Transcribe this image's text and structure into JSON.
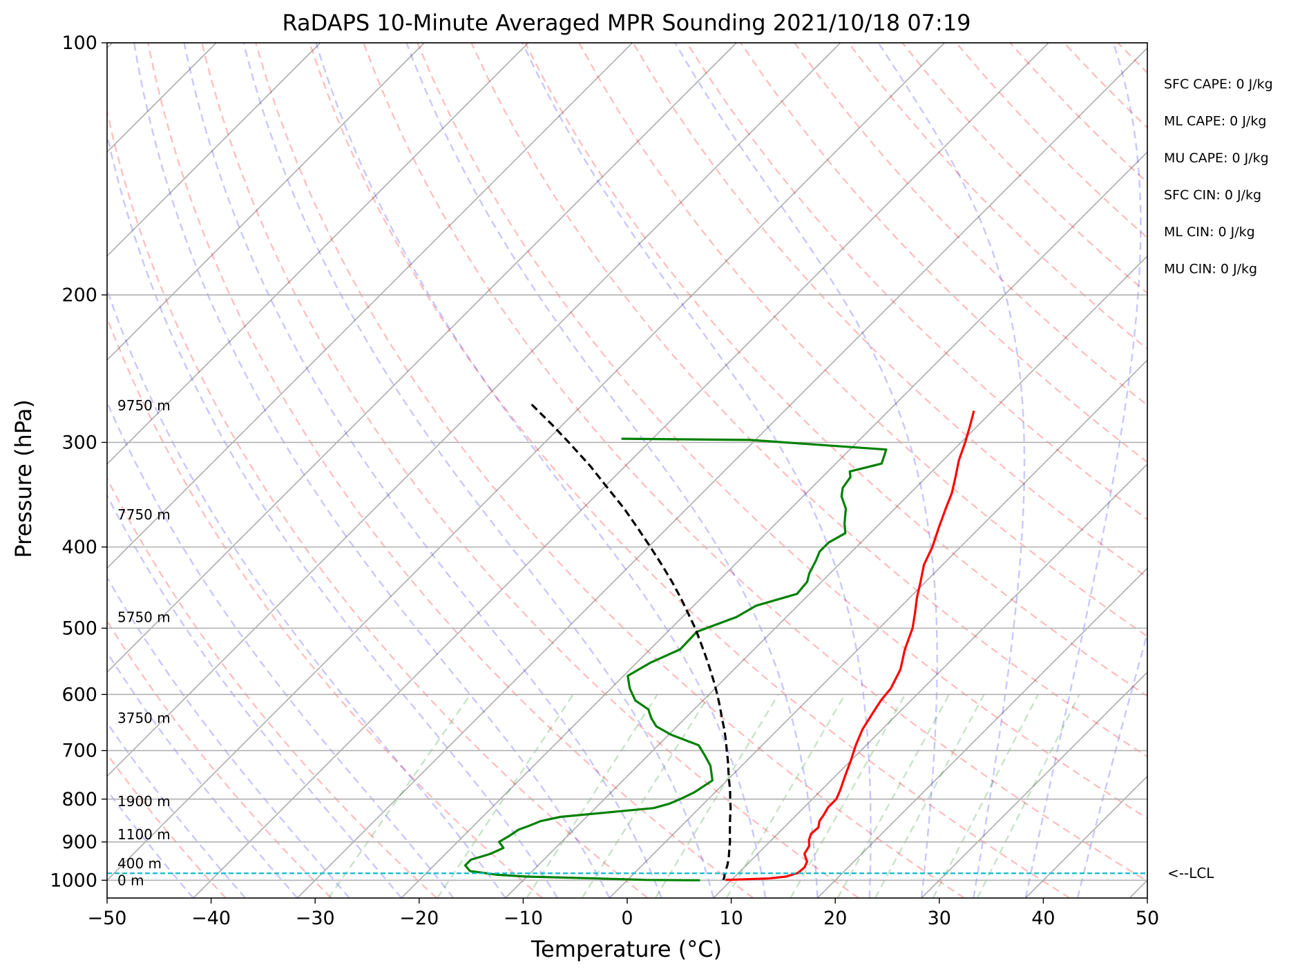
{
  "chart_data": {
    "type": "line",
    "title": "RaDAPS 10-Minute Averaged MPR Sounding 2021/10/18 07:19",
    "xlabel": "Temperature (°C)",
    "ylabel": "Pressure (hPa)",
    "xlim": [
      -50,
      50
    ],
    "ylim": [
      1050,
      100
    ],
    "y_scale": "log",
    "skew_t": true,
    "grid": true,
    "x_ticks": [
      {
        "value": -50,
        "label": "−50"
      },
      {
        "value": -40,
        "label": "−40"
      },
      {
        "value": -30,
        "label": "−30"
      },
      {
        "value": -20,
        "label": "−20"
      },
      {
        "value": -10,
        "label": "−10"
      },
      {
        "value": 0,
        "label": "0"
      },
      {
        "value": 10,
        "label": "10"
      },
      {
        "value": 20,
        "label": "20"
      },
      {
        "value": 30,
        "label": "30"
      },
      {
        "value": 40,
        "label": "40"
      },
      {
        "value": 50,
        "label": "50"
      }
    ],
    "y_ticks": [
      {
        "value": 100,
        "label": "100"
      },
      {
        "value": 200,
        "label": "200"
      },
      {
        "value": 300,
        "label": "300"
      },
      {
        "value": 400,
        "label": "400"
      },
      {
        "value": 500,
        "label": "500"
      },
      {
        "value": 600,
        "label": "600"
      },
      {
        "value": 700,
        "label": "700"
      },
      {
        "value": 800,
        "label": "800"
      },
      {
        "value": 900,
        "label": "900"
      },
      {
        "value": 1000,
        "label": "1000"
      }
    ],
    "height_labels": [
      {
        "p": 1000,
        "text": "0 m"
      },
      {
        "p": 955,
        "text": "400 m"
      },
      {
        "p": 882,
        "text": "1100 m"
      },
      {
        "p": 805,
        "text": "1900 m"
      },
      {
        "p": 640,
        "text": "3750 m"
      },
      {
        "p": 485,
        "text": "5750 m"
      },
      {
        "p": 366,
        "text": "7750 m"
      },
      {
        "p": 271,
        "text": "9750 m"
      }
    ],
    "parameters": [
      {
        "text": "SFC CAPE: 0 J/kg"
      },
      {
        "text": "ML CAPE: 0 J/kg"
      },
      {
        "text": "MU CAPE: 0 J/kg"
      },
      {
        "text": "SFC CIN: 0 J/kg"
      },
      {
        "text": "ML CIN: 0 J/kg"
      },
      {
        "text": "MU CIN: 0 J/kg"
      }
    ],
    "lcl": {
      "pressure": 981,
      "label": "<--LCL",
      "color": "#17becf"
    },
    "series": [
      {
        "id": "temperature",
        "color": "#ff0000",
        "points": [
          [
            999,
            9.4
          ],
          [
            995,
            13.4
          ],
          [
            990,
            14.9
          ],
          [
            980,
            15.7
          ],
          [
            965,
            15.8
          ],
          [
            950,
            15.5
          ],
          [
            930,
            14.5
          ],
          [
            910,
            14.2
          ],
          [
            895,
            13.6
          ],
          [
            880,
            13.2
          ],
          [
            865,
            13.3
          ],
          [
            850,
            12.8
          ],
          [
            835,
            12.6
          ],
          [
            818,
            12.3
          ],
          [
            800,
            12.3
          ],
          [
            780,
            11.8
          ],
          [
            750,
            10.9
          ],
          [
            720,
            10.0
          ],
          [
            690,
            9.0
          ],
          [
            660,
            8.1
          ],
          [
            630,
            7.5
          ],
          [
            610,
            7.1
          ],
          [
            590,
            6.9
          ],
          [
            560,
            6.0
          ],
          [
            530,
            4.5
          ],
          [
            500,
            3.2
          ],
          [
            480,
            2.0
          ],
          [
            460,
            0.7
          ],
          [
            440,
            -0.5
          ],
          [
            420,
            -1.8
          ],
          [
            400,
            -2.7
          ],
          [
            380,
            -3.9
          ],
          [
            360,
            -5.1
          ],
          [
            345,
            -6.0
          ],
          [
            330,
            -7.2
          ],
          [
            315,
            -8.5
          ],
          [
            300,
            -9.6
          ],
          [
            287,
            -10.7
          ],
          [
            275,
            -11.8
          ]
        ]
      },
      {
        "id": "dewpoint",
        "color": "#008000",
        "points": [
          [
            1000,
            7.0
          ],
          [
            999,
            1.8
          ],
          [
            995,
            -3.0
          ],
          [
            990,
            -10.0
          ],
          [
            985,
            -13.0
          ],
          [
            975,
            -16.0
          ],
          [
            960,
            -17.0
          ],
          [
            945,
            -17.0
          ],
          [
            930,
            -15.7
          ],
          [
            915,
            -15.0
          ],
          [
            900,
            -16.0
          ],
          [
            885,
            -15.6
          ],
          [
            870,
            -15.3
          ],
          [
            860,
            -14.6
          ],
          [
            850,
            -14.0
          ],
          [
            840,
            -12.5
          ],
          [
            820,
            -4.4
          ],
          [
            810,
            -3.3
          ],
          [
            800,
            -2.7
          ],
          [
            785,
            -2.0
          ],
          [
            760,
            -1.4
          ],
          [
            730,
            -3.0
          ],
          [
            710,
            -4.5
          ],
          [
            690,
            -6.1
          ],
          [
            670,
            -9.8
          ],
          [
            655,
            -12.0
          ],
          [
            640,
            -13.3
          ],
          [
            625,
            -14.4
          ],
          [
            610,
            -16.5
          ],
          [
            590,
            -18.2
          ],
          [
            570,
            -19.6
          ],
          [
            550,
            -18.7
          ],
          [
            530,
            -17.1
          ],
          [
            505,
            -17.2
          ],
          [
            485,
            -14.8
          ],
          [
            470,
            -14.0
          ],
          [
            455,
            -11.2
          ],
          [
            440,
            -11.4
          ],
          [
            430,
            -12.0
          ],
          [
            415,
            -12.6
          ],
          [
            405,
            -13.1
          ],
          [
            395,
            -13.1
          ],
          [
            385,
            -12.4
          ],
          [
            375,
            -13.4
          ],
          [
            360,
            -14.7
          ],
          [
            348,
            -16.3
          ],
          [
            340,
            -17.0
          ],
          [
            330,
            -17.3
          ],
          [
            325,
            -17.9
          ],
          [
            318,
            -15.6
          ],
          [
            306,
            -16.5
          ],
          [
            298,
            -30.5
          ],
          [
            297,
            -43.0
          ]
        ]
      },
      {
        "id": "parcel",
        "color": "#000000",
        "dashed": true,
        "points": [
          [
            999,
            9.2
          ],
          [
            990,
            9.0
          ],
          [
            981,
            8.7
          ],
          [
            960,
            8.2
          ],
          [
            940,
            7.6
          ],
          [
            920,
            6.9
          ],
          [
            900,
            6.2
          ],
          [
            880,
            5.4
          ],
          [
            860,
            4.6
          ],
          [
            840,
            3.8
          ],
          [
            820,
            3.0
          ],
          [
            800,
            2.1
          ],
          [
            780,
            1.2
          ],
          [
            760,
            0.2
          ],
          [
            740,
            -0.8
          ],
          [
            720,
            -1.8
          ],
          [
            700,
            -2.9
          ],
          [
            680,
            -4.0
          ],
          [
            660,
            -5.2
          ],
          [
            640,
            -6.5
          ],
          [
            620,
            -7.8
          ],
          [
            600,
            -9.2
          ],
          [
            580,
            -10.7
          ],
          [
            560,
            -12.3
          ],
          [
            540,
            -14.0
          ],
          [
            520,
            -15.8
          ],
          [
            500,
            -17.7
          ],
          [
            480,
            -19.8
          ],
          [
            460,
            -22.0
          ],
          [
            440,
            -24.4
          ],
          [
            420,
            -27.0
          ],
          [
            400,
            -29.8
          ],
          [
            380,
            -32.8
          ],
          [
            360,
            -36.0
          ],
          [
            340,
            -39.6
          ],
          [
            320,
            -43.4
          ],
          [
            300,
            -47.7
          ],
          [
            285,
            -51.2
          ],
          [
            270,
            -55.0
          ]
        ]
      }
    ]
  }
}
